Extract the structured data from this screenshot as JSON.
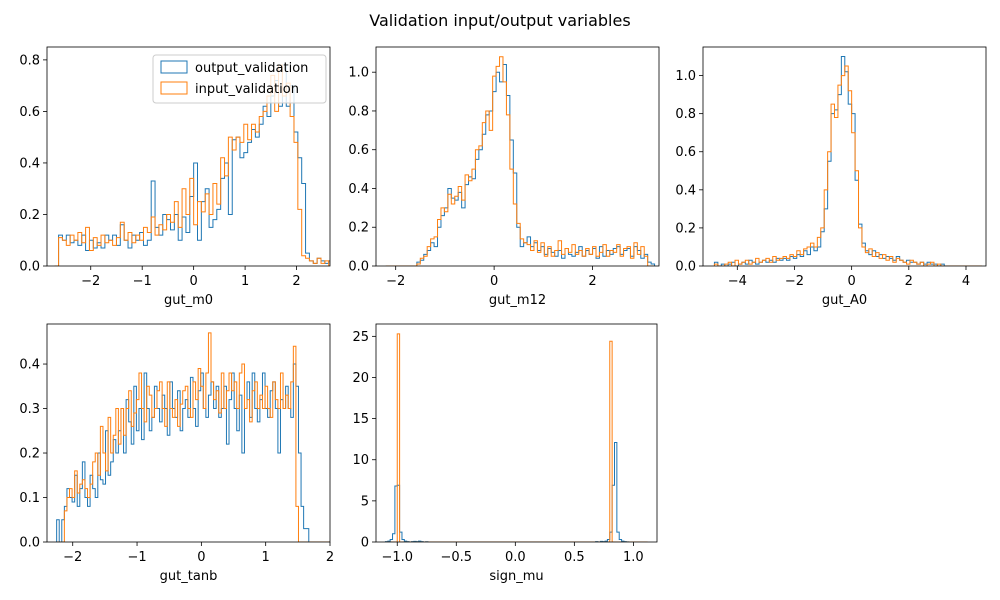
{
  "figure": {
    "suptitle": "Validation input/output variables",
    "colors": {
      "output_validation": "#1f77b4",
      "input_validation": "#ff7f0e"
    }
  },
  "chart_data": [
    {
      "type": "histogram",
      "xlabel": "gut_m0",
      "xlim": [
        -2.85,
        2.65
      ],
      "ylim": [
        0,
        0.85
      ],
      "xticks": [
        -2,
        -1,
        0,
        1,
        2
      ],
      "yticks": [
        0.0,
        0.2,
        0.4,
        0.6,
        0.8
      ],
      "legend": {
        "location": "upper right",
        "entries": [
          "output_validation",
          "input_validation"
        ]
      },
      "series": [
        {
          "name": "output_validation",
          "bin_start": -2.7,
          "bin_width": 0.075,
          "counts": [
            0.0,
            0.12,
            0.1,
            0.12,
            0.09,
            0.1,
            0.08,
            0.12,
            0.06,
            0.1,
            0.07,
            0.09,
            0.07,
            0.12,
            0.1,
            0.12,
            0.08,
            0.16,
            0.1,
            0.07,
            0.12,
            0.1,
            0.13,
            0.08,
            0.1,
            0.33,
            0.15,
            0.12,
            0.2,
            0.18,
            0.14,
            0.2,
            0.1,
            0.19,
            0.13,
            0.27,
            0.4,
            0.1,
            0.25,
            0.3,
            0.15,
            0.18,
            0.22,
            0.34,
            0.4,
            0.2,
            0.49,
            0.5,
            0.42,
            0.44,
            0.48,
            0.53,
            0.5,
            0.55,
            0.62,
            0.58,
            0.66,
            0.72,
            0.62,
            0.78,
            0.62,
            0.7,
            0.52,
            0.42,
            0.32,
            0.05,
            0.02,
            0.01,
            0.03,
            0.02,
            0.01,
            0.02,
            0.01,
            0.0,
            0.02,
            0.01,
            0.02,
            0.01,
            0.0,
            0.02,
            0.0,
            0.0,
            0.01,
            0.02
          ]
        },
        {
          "name": "input_validation",
          "bin_start": -2.7,
          "bin_width": 0.075,
          "counts": [
            0.0,
            0.11,
            0.1,
            0.08,
            0.12,
            0.1,
            0.13,
            0.09,
            0.15,
            0.06,
            0.11,
            0.08,
            0.12,
            0.09,
            0.1,
            0.08,
            0.11,
            0.17,
            0.1,
            0.13,
            0.09,
            0.12,
            0.1,
            0.15,
            0.13,
            0.19,
            0.12,
            0.16,
            0.14,
            0.2,
            0.17,
            0.25,
            0.15,
            0.3,
            0.2,
            0.34,
            0.16,
            0.25,
            0.21,
            0.28,
            0.2,
            0.32,
            0.24,
            0.42,
            0.35,
            0.5,
            0.45,
            0.5,
            0.48,
            0.55,
            0.49,
            0.55,
            0.52,
            0.58,
            0.6,
            0.66,
            0.74,
            0.6,
            0.78,
            0.66,
            0.71,
            0.58,
            0.48,
            0.22,
            0.04,
            0.03,
            0.02,
            0.01,
            0.03,
            0.01,
            0.02,
            0.0,
            0.01,
            0.02,
            0.0,
            0.01,
            0.0,
            0.01,
            0.02,
            0.0,
            0.01,
            0.0,
            0.0,
            0.0
          ]
        }
      ]
    },
    {
      "type": "histogram",
      "xlabel": "gut_m12",
      "xlim": [
        -2.4,
        3.35
      ],
      "ylim": [
        0,
        1.13
      ],
      "xticks": [
        -2,
        0,
        2
      ],
      "yticks": [
        0.0,
        0.2,
        0.4,
        0.6,
        0.8,
        1.0
      ],
      "series": [
        {
          "name": "output_validation",
          "bin_start": -2.2,
          "bin_width": 0.07,
          "counts": [
            0.0,
            0.0,
            0.0,
            0.0,
            0.0,
            0.0,
            0.0,
            0.0,
            0.0,
            0.02,
            0.03,
            0.06,
            0.08,
            0.12,
            0.1,
            0.2,
            0.26,
            0.3,
            0.4,
            0.35,
            0.34,
            0.38,
            0.3,
            0.42,
            0.46,
            0.45,
            0.55,
            0.6,
            0.68,
            0.78,
            0.8,
            0.9,
            1.0,
            0.95,
            1.04,
            0.88,
            0.65,
            0.48,
            0.2,
            0.1,
            0.12,
            0.15,
            0.1,
            0.12,
            0.08,
            0.1,
            0.06,
            0.09,
            0.07,
            0.05,
            0.08,
            0.04,
            0.09,
            0.06,
            0.05,
            0.07,
            0.1,
            0.05,
            0.08,
            0.06,
            0.09,
            0.04,
            0.1,
            0.05,
            0.08,
            0.06,
            0.09,
            0.1,
            0.06,
            0.08,
            0.09,
            0.05,
            0.1,
            0.08,
            0.04,
            0.06,
            0.02,
            0.01
          ]
        },
        {
          "name": "input_validation",
          "bin_start": -2.2,
          "bin_width": 0.07,
          "counts": [
            0.0,
            0.0,
            0.0,
            0.0,
            0.0,
            0.0,
            0.0,
            0.0,
            0.0,
            0.01,
            0.04,
            0.05,
            0.1,
            0.14,
            0.15,
            0.24,
            0.3,
            0.28,
            0.37,
            0.32,
            0.36,
            0.41,
            0.34,
            0.47,
            0.44,
            0.5,
            0.6,
            0.62,
            0.74,
            0.8,
            0.7,
            0.98,
            1.03,
            1.08,
            0.95,
            0.78,
            0.5,
            0.32,
            0.22,
            0.14,
            0.12,
            0.11,
            0.08,
            0.13,
            0.07,
            0.12,
            0.05,
            0.1,
            0.05,
            0.08,
            0.13,
            0.06,
            0.09,
            0.07,
            0.11,
            0.06,
            0.08,
            0.05,
            0.09,
            0.06,
            0.1,
            0.05,
            0.07,
            0.11,
            0.05,
            0.08,
            0.07,
            0.11,
            0.05,
            0.09,
            0.1,
            0.04,
            0.12,
            0.06,
            0.1,
            0.05,
            0.0,
            0.0
          ]
        }
      ]
    },
    {
      "type": "histogram",
      "xlabel": "gut_A0",
      "xlim": [
        -5.2,
        4.7
      ],
      "ylim": [
        0,
        1.15
      ],
      "xticks": [
        -4,
        -2,
        0,
        2,
        4
      ],
      "yticks": [
        0.0,
        0.2,
        0.4,
        0.6,
        0.8,
        1.0
      ],
      "series": [
        {
          "name": "output_validation",
          "bin_start": -4.8,
          "bin_width": 0.12,
          "counts": [
            0.02,
            0.0,
            0.01,
            0.0,
            0.01,
            0.02,
            0.0,
            0.01,
            0.02,
            0.01,
            0.03,
            0.02,
            0.01,
            0.02,
            0.03,
            0.02,
            0.03,
            0.02,
            0.04,
            0.03,
            0.04,
            0.03,
            0.05,
            0.04,
            0.06,
            0.05,
            0.08,
            0.06,
            0.1,
            0.08,
            0.1,
            0.18,
            0.3,
            0.55,
            0.8,
            0.82,
            0.9,
            1.1,
            1.02,
            0.85,
            0.8,
            0.45,
            0.22,
            0.12,
            0.08,
            0.06,
            0.08,
            0.05,
            0.06,
            0.04,
            0.05,
            0.04,
            0.03,
            0.05,
            0.03,
            0.02,
            0.03,
            0.02,
            0.02,
            0.01,
            0.02,
            0.01,
            0.02,
            0.01,
            0.01,
            0.0,
            0.01,
            0.0,
            0.0,
            0.0,
            0.0,
            0.0,
            0.0,
            0.0,
            0.0,
            0.0,
            0.0,
            0.0
          ]
        },
        {
          "name": "input_validation",
          "bin_start": -4.8,
          "bin_width": 0.12,
          "counts": [
            0.01,
            0.0,
            0.0,
            0.01,
            0.02,
            0.0,
            0.03,
            0.01,
            0.02,
            0.03,
            0.01,
            0.02,
            0.04,
            0.02,
            0.03,
            0.04,
            0.02,
            0.05,
            0.03,
            0.04,
            0.05,
            0.04,
            0.06,
            0.05,
            0.08,
            0.06,
            0.09,
            0.1,
            0.12,
            0.1,
            0.15,
            0.2,
            0.4,
            0.6,
            0.85,
            0.78,
            0.95,
            1.0,
            1.05,
            0.92,
            0.7,
            0.5,
            0.2,
            0.1,
            0.07,
            0.09,
            0.05,
            0.07,
            0.04,
            0.06,
            0.03,
            0.05,
            0.02,
            0.04,
            0.03,
            0.02,
            0.01,
            0.03,
            0.02,
            0.01,
            0.02,
            0.0,
            0.01,
            0.02,
            0.0,
            0.01,
            0.0,
            0.0,
            0.0,
            0.0,
            0.0,
            0.0,
            0.0,
            0.0,
            0.0,
            0.0,
            0.0,
            0.0
          ]
        }
      ]
    },
    {
      "type": "histogram",
      "xlabel": "gut_tanb",
      "xlim": [
        -2.4,
        2.0
      ],
      "ylim": [
        0,
        0.49
      ],
      "xticks": [
        -2,
        -1,
        0,
        1,
        2
      ],
      "yticks": [
        0.0,
        0.1,
        0.2,
        0.3,
        0.4
      ],
      "series": [
        {
          "name": "output_validation",
          "bin_start": -2.25,
          "bin_width": 0.04,
          "counts": [
            0.05,
            0.0,
            0.05,
            0.08,
            0.12,
            0.1,
            0.09,
            0.15,
            0.08,
            0.12,
            0.18,
            0.1,
            0.08,
            0.15,
            0.12,
            0.1,
            0.2,
            0.14,
            0.13,
            0.25,
            0.15,
            0.18,
            0.23,
            0.2,
            0.25,
            0.3,
            0.2,
            0.32,
            0.27,
            0.22,
            0.35,
            0.25,
            0.3,
            0.23,
            0.38,
            0.3,
            0.25,
            0.28,
            0.35,
            0.3,
            0.27,
            0.33,
            0.3,
            0.24,
            0.36,
            0.3,
            0.28,
            0.34,
            0.25,
            0.3,
            0.32,
            0.28,
            0.37,
            0.3,
            0.26,
            0.34,
            0.38,
            0.3,
            0.28,
            0.33,
            0.36,
            0.3,
            0.35,
            0.28,
            0.3,
            0.35,
            0.22,
            0.32,
            0.38,
            0.3,
            0.25,
            0.33,
            0.2,
            0.3,
            0.36,
            0.28,
            0.38,
            0.3,
            0.27,
            0.32,
            0.38,
            0.3,
            0.28,
            0.34,
            0.36,
            0.3,
            0.2,
            0.32,
            0.3,
            0.35,
            0.3,
            0.28,
            0.4,
            0.35,
            0.2,
            0.08,
            0.03,
            0.03,
            0.0,
            0.0,
            0.0,
            0.0,
            0.0,
            0.0,
            0.0,
            0.0,
            0.0,
            0.0,
            0.0,
            0.0
          ]
        },
        {
          "name": "input_validation",
          "bin_start": -2.25,
          "bin_width": 0.04,
          "counts": [
            0.0,
            0.0,
            0.0,
            0.07,
            0.1,
            0.12,
            0.1,
            0.16,
            0.11,
            0.13,
            0.14,
            0.12,
            0.1,
            0.13,
            0.18,
            0.2,
            0.15,
            0.26,
            0.2,
            0.16,
            0.28,
            0.2,
            0.24,
            0.3,
            0.22,
            0.3,
            0.24,
            0.3,
            0.34,
            0.26,
            0.29,
            0.32,
            0.38,
            0.3,
            0.27,
            0.35,
            0.33,
            0.28,
            0.3,
            0.34,
            0.36,
            0.3,
            0.26,
            0.36,
            0.3,
            0.28,
            0.32,
            0.26,
            0.31,
            0.34,
            0.35,
            0.3,
            0.28,
            0.36,
            0.32,
            0.39,
            0.35,
            0.3,
            0.38,
            0.47,
            0.36,
            0.32,
            0.34,
            0.29,
            0.38,
            0.3,
            0.34,
            0.38,
            0.34,
            0.36,
            0.3,
            0.38,
            0.4,
            0.3,
            0.32,
            0.27,
            0.34,
            0.36,
            0.3,
            0.33,
            0.3,
            0.35,
            0.3,
            0.28,
            0.36,
            0.32,
            0.3,
            0.38,
            0.3,
            0.33,
            0.3,
            0.36,
            0.44,
            0.08,
            0.0,
            0.0,
            0.0,
            0.0,
            0.0,
            0.0,
            0.0,
            0.0,
            0.0,
            0.0,
            0.0,
            0.0,
            0.0,
            0.0,
            0.0,
            0.0
          ]
        }
      ]
    },
    {
      "type": "histogram",
      "xlabel": "sign_mu",
      "xlim": [
        -1.18,
        1.2
      ],
      "ylim": [
        0,
        26.5
      ],
      "xticks": [
        -1.0,
        -0.5,
        0.0,
        0.5,
        1.0
      ],
      "yticks": [
        0,
        5,
        10,
        15,
        20,
        25
      ],
      "series": [
        {
          "name": "output_validation",
          "bin_start": -1.1,
          "bin_width": 0.02,
          "counts": [
            0.05,
            0.1,
            0.3,
            1.0,
            6.8,
            6.9,
            1.2,
            0.3,
            0.1,
            0.05,
            0.0,
            0.05,
            0.08,
            0.05,
            0.1,
            0.05,
            0.0,
            0.03,
            0.0,
            0.0,
            0.0,
            0.0,
            0.0,
            0.0,
            0.0,
            0.0,
            0.0,
            0.0,
            0.0,
            0.0,
            0.0,
            0.0,
            0.0,
            0.0,
            0.0,
            0.0,
            0.0,
            0.0,
            0.0,
            0.0,
            0.0,
            0.0,
            0.0,
            0.0,
            0.0,
            0.0,
            0.0,
            0.0,
            0.0,
            0.0,
            0.0,
            0.0,
            0.0,
            0.0,
            0.0,
            0.0,
            0.0,
            0.0,
            0.0,
            0.0,
            0.0,
            0.0,
            0.0,
            0.0,
            0.0,
            0.0,
            0.0,
            0.0,
            0.0,
            0.0,
            0.0,
            0.0,
            0.0,
            0.0,
            0.0,
            0.0,
            0.0,
            0.0,
            0.0,
            0.0,
            0.0,
            0.0,
            0.0,
            0.0,
            0.0,
            0.0,
            0.0,
            0.0,
            0.0,
            0.05,
            0.0,
            0.08,
            0.05,
            0.1,
            0.3,
            1.2,
            6.9,
            12.1,
            1.2,
            0.3,
            0.1,
            0.05,
            0.02,
            0.0,
            0.0,
            0.0,
            0.0,
            0.0,
            0.0,
            0.0,
            0.0
          ]
        },
        {
          "name": "input_validation",
          "bin_start": -1.1,
          "bin_width": 0.02,
          "counts": [
            0.0,
            0.0,
            0.0,
            0.0,
            0.0,
            25.3,
            0.0,
            0.0,
            0.0,
            0.0,
            0.0,
            0.0,
            0.0,
            0.0,
            0.0,
            0.0,
            0.0,
            0.0,
            0.0,
            0.0,
            0.0,
            0.0,
            0.0,
            0.0,
            0.0,
            0.0,
            0.0,
            0.0,
            0.0,
            0.0,
            0.0,
            0.0,
            0.0,
            0.0,
            0.0,
            0.0,
            0.0,
            0.0,
            0.0,
            0.0,
            0.0,
            0.0,
            0.0,
            0.0,
            0.0,
            0.0,
            0.0,
            0.0,
            0.0,
            0.0,
            0.0,
            0.0,
            0.0,
            0.0,
            0.0,
            0.0,
            0.0,
            0.0,
            0.0,
            0.0,
            0.0,
            0.0,
            0.0,
            0.0,
            0.0,
            0.0,
            0.0,
            0.0,
            0.0,
            0.0,
            0.0,
            0.0,
            0.0,
            0.0,
            0.0,
            0.0,
            0.0,
            0.0,
            0.0,
            0.0,
            0.0,
            0.0,
            0.0,
            0.0,
            0.0,
            0.0,
            0.0,
            0.0,
            0.0,
            0.0,
            0.0,
            0.0,
            0.0,
            0.0,
            0.0,
            24.4,
            0.0,
            0.0,
            0.0,
            0.0,
            0.0,
            0.0,
            0.0,
            0.0,
            0.0,
            0.0,
            0.0,
            0.0,
            0.0,
            0.0,
            0.0
          ]
        }
      ]
    }
  ]
}
